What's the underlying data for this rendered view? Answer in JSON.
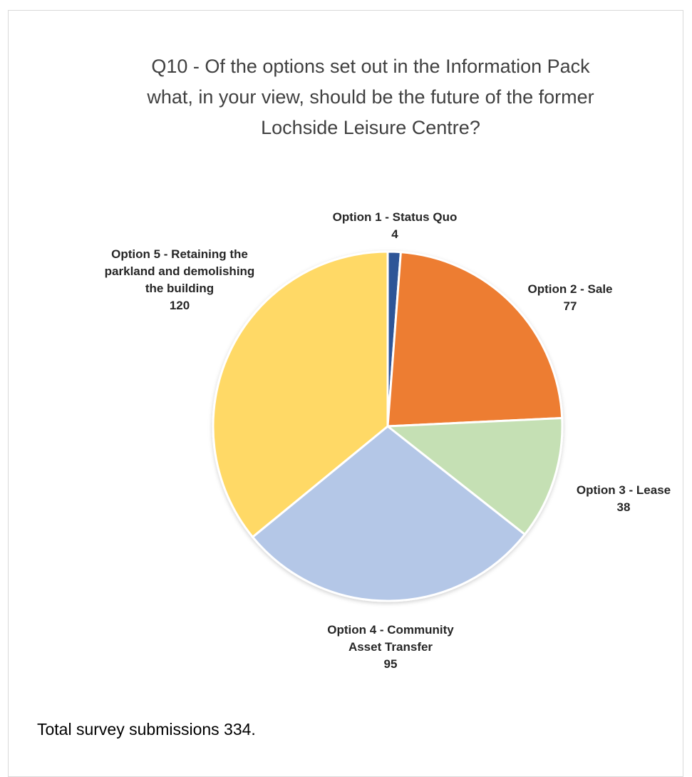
{
  "chart_data": {
    "type": "pie",
    "title_lines": [
      "Q10 - Of the options set out in the Information Pack",
      "what, in your view, should be the future of the former",
      "Lochside Leisure Centre?"
    ],
    "slices": [
      {
        "label_lines": [
          "Option 1 - Status Quo"
        ],
        "value": 4,
        "color": "#2f5597"
      },
      {
        "label_lines": [
          "Option 2 - Sale"
        ],
        "value": 77,
        "color": "#ed7d31"
      },
      {
        "label_lines": [
          "Option 3 - Lease"
        ],
        "value": 38,
        "color": "#c5e0b4"
      },
      {
        "label_lines": [
          "Option 4 - Community",
          "Asset Transfer"
        ],
        "value": 95,
        "color": "#b4c7e7"
      },
      {
        "label_lines": [
          "Option 5 - Retaining the",
          "parkland and demolishing",
          "the building"
        ],
        "value": 120,
        "color": "#ffd966"
      }
    ]
  },
  "footnote": "Total survey submissions 334."
}
